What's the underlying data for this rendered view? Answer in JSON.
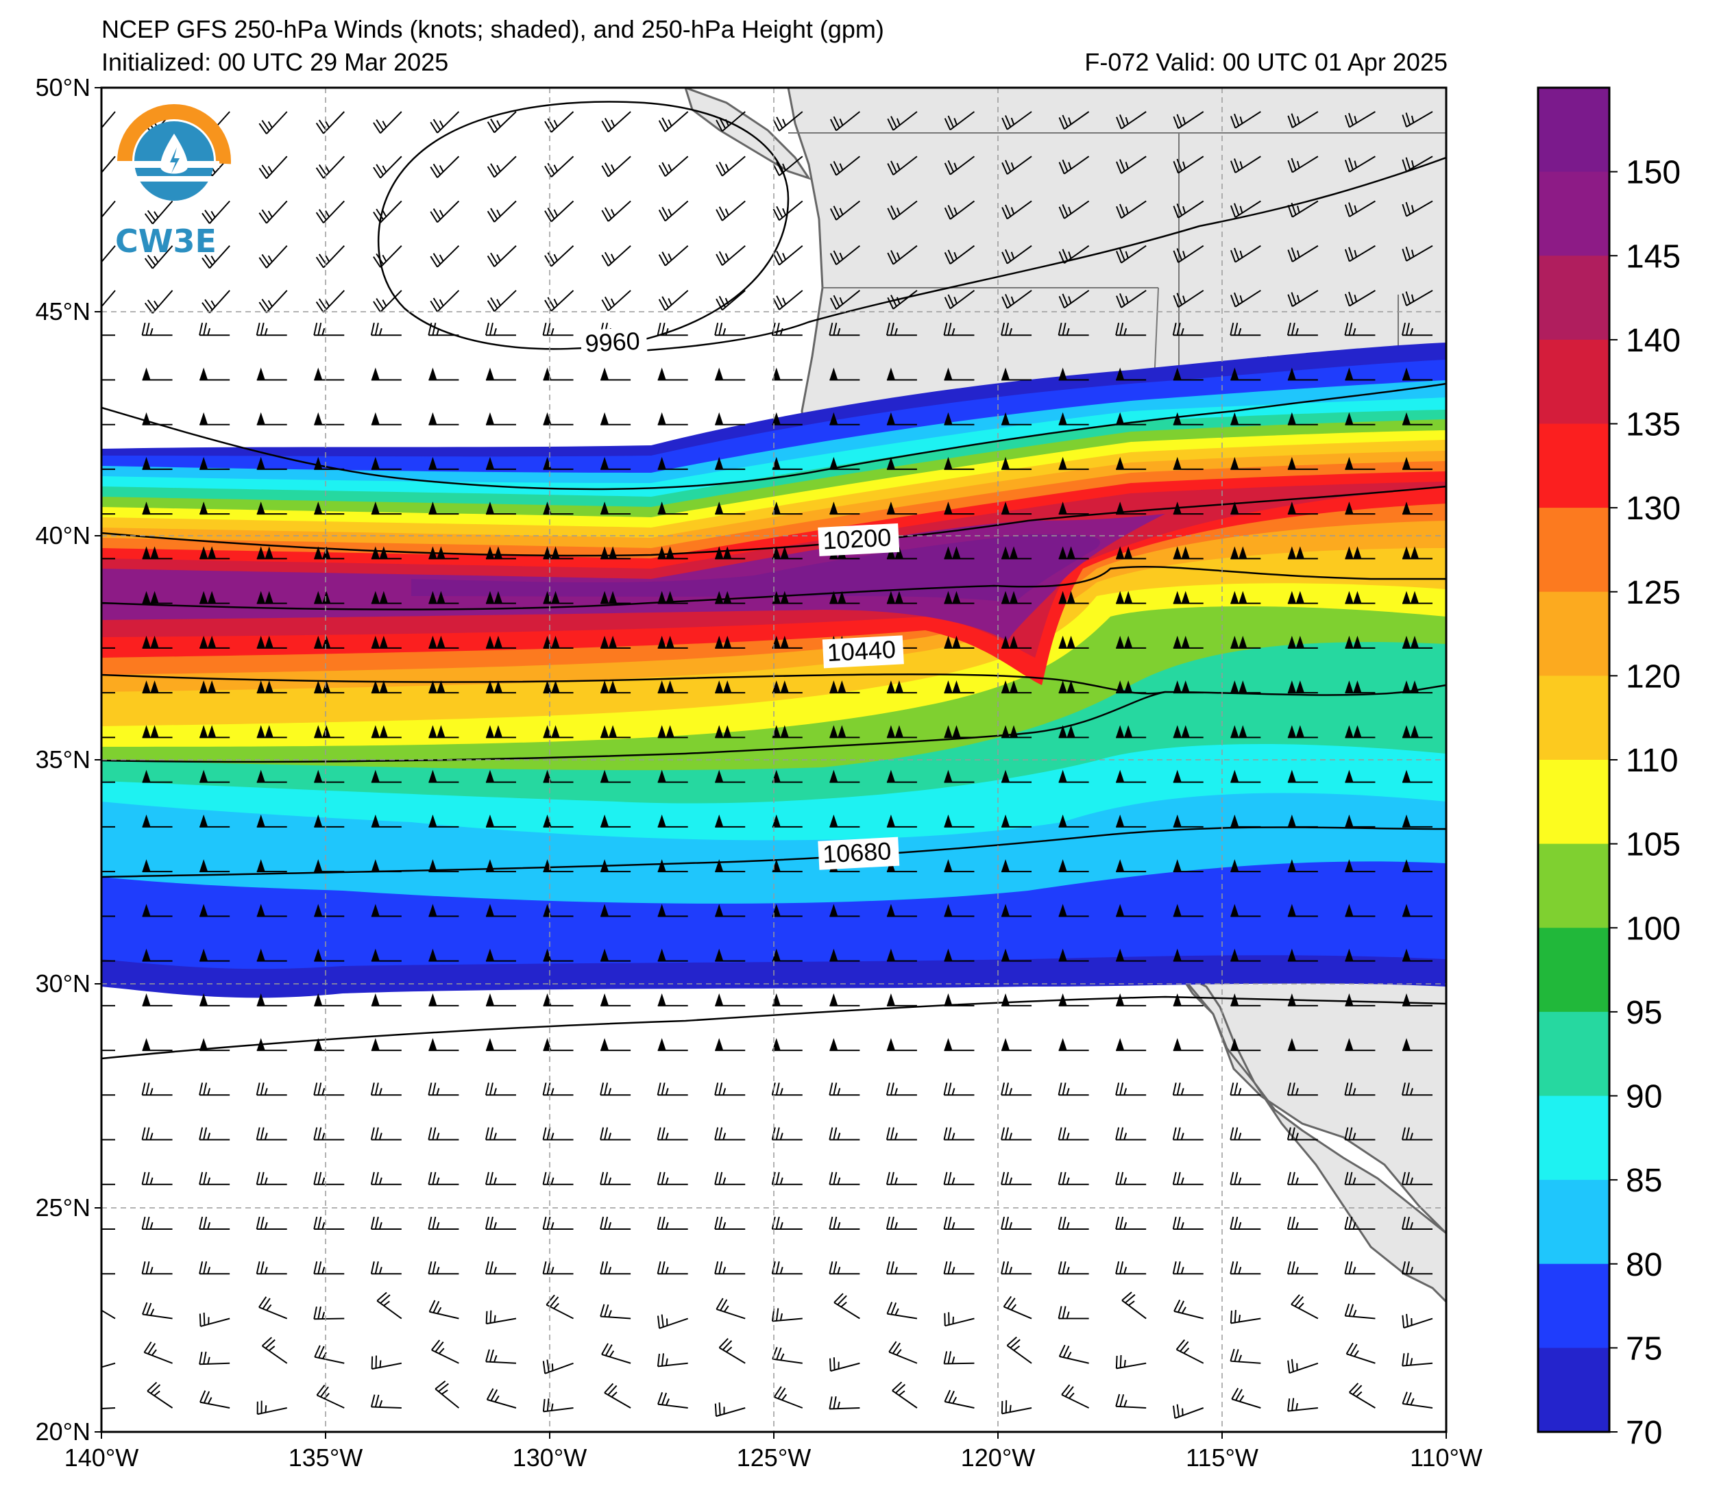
{
  "header": {
    "title": "NCEP GFS 250-hPa Winds (knots; shaded), and 250-hPa Height (gpm)",
    "initialized": "Initialized: 00 UTC 29 Mar 2025",
    "valid": "F-072  Valid: 00 UTC 01 Apr 2025"
  },
  "logo": {
    "text": "CW3E"
  },
  "map": {
    "lon_range": [
      -140,
      -110
    ],
    "lat_range": [
      20,
      50
    ],
    "lat_ticks": [
      {
        "value": 50,
        "label": "50°N"
      },
      {
        "value": 45,
        "label": "45°N"
      },
      {
        "value": 40,
        "label": "40°N"
      },
      {
        "value": 35,
        "label": "35°N"
      },
      {
        "value": 30,
        "label": "30°N"
      },
      {
        "value": 25,
        "label": "25°N"
      },
      {
        "value": 20,
        "label": "20°N"
      }
    ],
    "lon_ticks": [
      {
        "value": -140,
        "label": "140°W"
      },
      {
        "value": -135,
        "label": "135°W"
      },
      {
        "value": -130,
        "label": "130°W"
      },
      {
        "value": -125,
        "label": "125°W"
      },
      {
        "value": -120,
        "label": "120°W"
      },
      {
        "value": -115,
        "label": "115°W"
      },
      {
        "value": -110,
        "label": "110°W"
      }
    ],
    "height_contour_labels": [
      {
        "label": "9960",
        "lon": -129.2,
        "lat": 44.1
      },
      {
        "label": "10200",
        "lon": -123.9,
        "lat": 39.7
      },
      {
        "label": "10440",
        "lon": -123.8,
        "lat": 37.2
      },
      {
        "label": "10680",
        "lon": -123.9,
        "lat": 32.7
      }
    ],
    "land_color": "#e6e6e6",
    "coast_color": "#666666"
  },
  "colorbar": {
    "ticks": [
      "150",
      "145",
      "140",
      "135",
      "130",
      "125",
      "120",
      "110",
      "105",
      "100",
      "95",
      "90",
      "85",
      "80",
      "75",
      "70"
    ],
    "colors": [
      "#7b1a8c",
      "#8d1b86",
      "#b01e5e",
      "#d41d3b",
      "#fb1f1f",
      "#fc7a1f",
      "#fcaa1f",
      "#fcca1f",
      "#fcfc1f",
      "#7fd030",
      "#21b83a",
      "#26d8a0",
      "#1ef2f2",
      "#1fc6fc",
      "#1f3dfc",
      "#2424cc"
    ]
  }
}
